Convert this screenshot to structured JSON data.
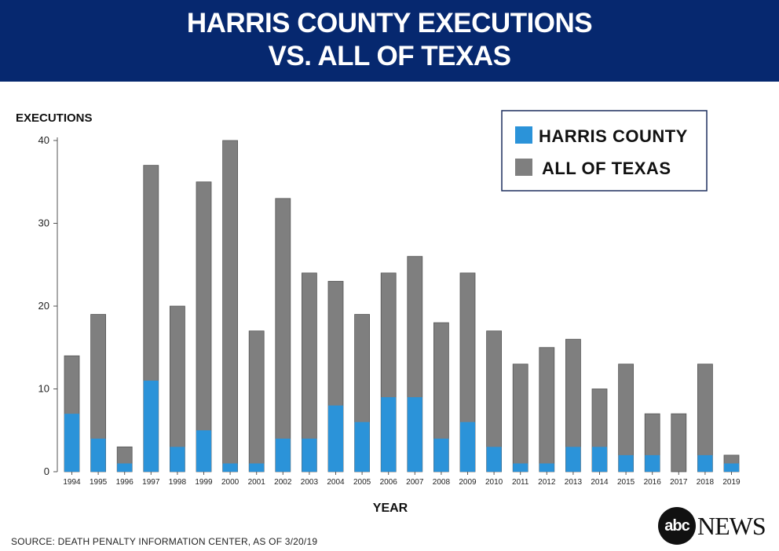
{
  "header": {
    "title_line1": "HARRIS COUNTY EXECUTIONS",
    "title_line2": "VS. ALL OF TEXAS"
  },
  "footer": {
    "source": "SOURCE: DEATH PENALTY INFORMATION CENTER, AS OF 3/20/19",
    "logo_circle_text": "abc",
    "logo_news_text": "NEWS"
  },
  "colors": {
    "banner": "#06286f",
    "harris": "#2b93d9",
    "texas": "#7f7f7f"
  },
  "chart_data": {
    "type": "bar",
    "ylabel": "EXECUTIONS",
    "xlabel": "YEAR",
    "ylim": [
      0,
      40
    ],
    "yticks": [
      0,
      10,
      20,
      30,
      40
    ],
    "legend_position": "top-right",
    "categories": [
      "1994",
      "1995",
      "1996",
      "1997",
      "1998",
      "1999",
      "2000",
      "2001",
      "2002",
      "2003",
      "2004",
      "2005",
      "2006",
      "2007",
      "2008",
      "2009",
      "2010",
      "2011",
      "2012",
      "2013",
      "2014",
      "2015",
      "2016",
      "2017",
      "2018",
      "2019"
    ],
    "series": [
      {
        "name": "ALL OF TEXAS",
        "color": "#7f7f7f",
        "values": [
          14,
          19,
          3,
          37,
          20,
          35,
          40,
          17,
          33,
          24,
          23,
          19,
          24,
          26,
          18,
          24,
          17,
          13,
          15,
          16,
          10,
          13,
          7,
          7,
          13,
          2
        ]
      },
      {
        "name": "HARRIS COUNTY",
        "color": "#2b93d9",
        "values": [
          7,
          4,
          1,
          11,
          3,
          5,
          1,
          1,
          4,
          4,
          8,
          6,
          9,
          9,
          4,
          6,
          3,
          1,
          1,
          3,
          3,
          2,
          2,
          0,
          2,
          1
        ]
      }
    ],
    "legend": [
      "HARRIS COUNTY",
      "ALL OF TEXAS"
    ]
  }
}
